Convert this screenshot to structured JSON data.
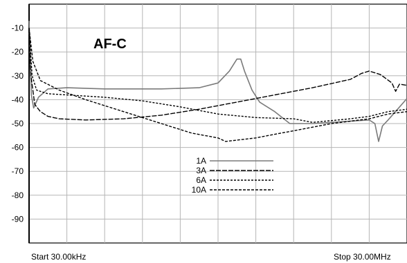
{
  "chart_data": {
    "type": "line",
    "title": "AF-C",
    "xlabel": "",
    "ylabel": "",
    "x_start_label": "Start 30.00kHz",
    "x_stop_label": "Stop 30.00MHz",
    "ylim": [
      -100,
      0
    ],
    "y_ticks": [
      -10,
      -20,
      -30,
      -40,
      -50,
      -60,
      -70,
      -80,
      -90
    ],
    "grid": true,
    "legend_position": "center-bottom",
    "series": [
      {
        "name": "1A",
        "style": "solid",
        "color": "#7a7a7a",
        "points": [
          [
            0.0,
            -7
          ],
          [
            0.006,
            -38
          ],
          [
            0.012,
            -43.5
          ],
          [
            0.025,
            -39
          ],
          [
            0.05,
            -35.5
          ],
          [
            0.1,
            -35
          ],
          [
            0.2,
            -35.5
          ],
          [
            0.35,
            -35.5
          ],
          [
            0.45,
            -35
          ],
          [
            0.5,
            -33
          ],
          [
            0.53,
            -28
          ],
          [
            0.55,
            -23
          ],
          [
            0.56,
            -23
          ],
          [
            0.57,
            -28
          ],
          [
            0.59,
            -36
          ],
          [
            0.61,
            -41
          ],
          [
            0.65,
            -45
          ],
          [
            0.69,
            -50
          ],
          [
            0.75,
            -50
          ],
          [
            0.8,
            -49.5
          ],
          [
            0.85,
            -49
          ],
          [
            0.9,
            -48.5
          ],
          [
            0.915,
            -50
          ],
          [
            0.925,
            -57.5
          ],
          [
            0.935,
            -51
          ],
          [
            0.95,
            -48.5
          ],
          [
            0.975,
            -44
          ],
          [
            1.0,
            -39.5
          ]
        ]
      },
      {
        "name": "3A",
        "style": "dashed",
        "color": "#000000",
        "points": [
          [
            0.0,
            -10
          ],
          [
            0.005,
            -30
          ],
          [
            0.015,
            -42
          ],
          [
            0.03,
            -45
          ],
          [
            0.05,
            -47
          ],
          [
            0.08,
            -48
          ],
          [
            0.15,
            -48.5
          ],
          [
            0.25,
            -48
          ],
          [
            0.35,
            -46.5
          ],
          [
            0.45,
            -44
          ],
          [
            0.55,
            -41
          ],
          [
            0.65,
            -38
          ],
          [
            0.75,
            -35
          ],
          [
            0.85,
            -31.5
          ],
          [
            0.88,
            -29
          ],
          [
            0.9,
            -28
          ],
          [
            0.93,
            -29.5
          ],
          [
            0.96,
            -33
          ],
          [
            0.97,
            -36.5
          ],
          [
            0.98,
            -33.5
          ],
          [
            1.0,
            -34
          ]
        ]
      },
      {
        "name": "6A",
        "style": "dashed",
        "color": "#000000",
        "points": [
          [
            0.0,
            -10
          ],
          [
            0.008,
            -30
          ],
          [
            0.02,
            -36
          ],
          [
            0.05,
            -37.5
          ],
          [
            0.1,
            -38
          ],
          [
            0.2,
            -39
          ],
          [
            0.3,
            -40.5
          ],
          [
            0.4,
            -43
          ],
          [
            0.5,
            -46
          ],
          [
            0.6,
            -47.5
          ],
          [
            0.7,
            -48
          ],
          [
            0.75,
            -49.5
          ],
          [
            0.85,
            -48
          ],
          [
            0.9,
            -47
          ],
          [
            0.95,
            -45
          ],
          [
            1.0,
            -44
          ]
        ]
      },
      {
        "name": "10A",
        "style": "dashed",
        "color": "#000000",
        "points": [
          [
            0.0,
            -10
          ],
          [
            0.01,
            -24
          ],
          [
            0.03,
            -32
          ],
          [
            0.08,
            -36
          ],
          [
            0.15,
            -40
          ],
          [
            0.25,
            -45
          ],
          [
            0.35,
            -50
          ],
          [
            0.43,
            -54
          ],
          [
            0.5,
            -56
          ],
          [
            0.52,
            -57.5
          ],
          [
            0.6,
            -56
          ],
          [
            0.7,
            -53
          ],
          [
            0.8,
            -50
          ],
          [
            0.9,
            -48
          ],
          [
            0.95,
            -46
          ],
          [
            1.0,
            -45
          ]
        ]
      }
    ]
  }
}
